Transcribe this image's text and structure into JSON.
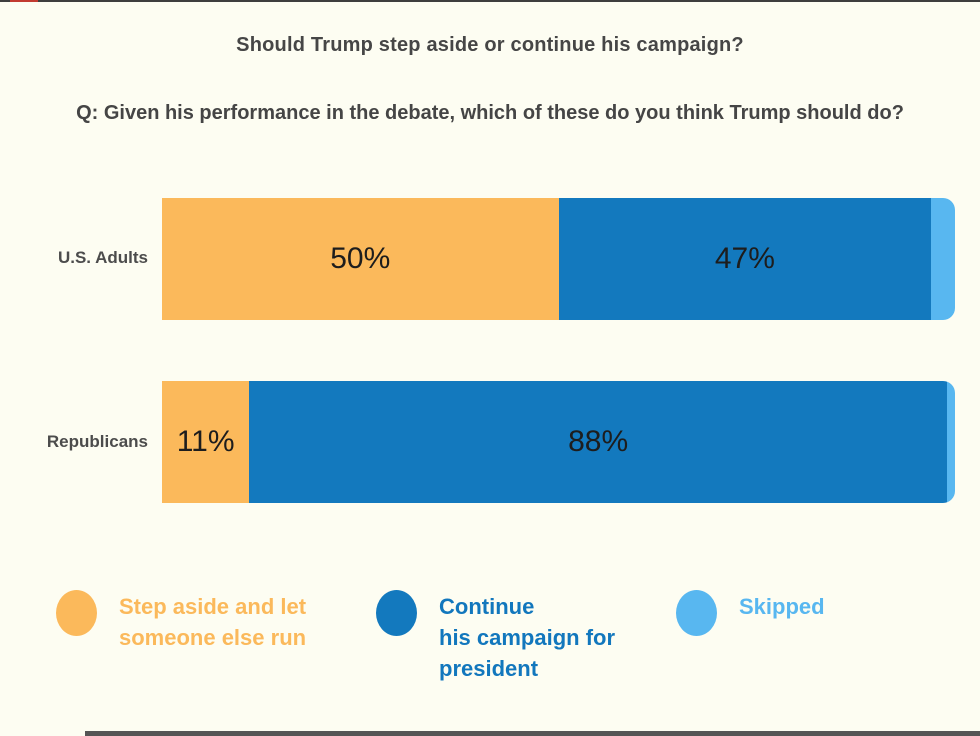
{
  "page": {
    "background": "#FDFDF2"
  },
  "header": {
    "title": "Should Trump step aside or continue his campaign?",
    "question": "Q: Given his performance in the debate, which of these do you think Trump should do?"
  },
  "chart_data": {
    "type": "bar",
    "stacked": true,
    "orientation": "horizontal",
    "title": "Should Trump step aside or continue his campaign?",
    "subtitle": "Q: Given his performance in the debate, which of these do you think Trump should do?",
    "categories": [
      "U.S. Adults",
      "Republicans"
    ],
    "series": [
      {
        "name": "Step aside and let someone else run",
        "color": "#FBB95B",
        "values": [
          50,
          11
        ],
        "labels": [
          "50%",
          "11%"
        ]
      },
      {
        "name": "Continue his campaign for president",
        "color": "#1379BE",
        "values": [
          47,
          88
        ],
        "labels": [
          "47%",
          "88%"
        ]
      },
      {
        "name": "Skipped",
        "color": "#58B7F0",
        "values": [
          3,
          1
        ],
        "labels": [
          "",
          ""
        ]
      }
    ],
    "xlim": [
      0,
      100
    ],
    "grid": false,
    "legend_position": "bottom"
  },
  "legend": {
    "items": [
      {
        "icon": "circle-swatch",
        "color": "#FBB95B",
        "text_color": "#FBB95B",
        "lines": [
          "Step aside and let",
          "someone else run"
        ]
      },
      {
        "icon": "circle-swatch",
        "color": "#1379BE",
        "text_color": "#1277BD",
        "lines": [
          "Continue",
          "his campaign for",
          "president"
        ]
      },
      {
        "icon": "circle-swatch",
        "color": "#58B7F0",
        "text_color": "#58B7F0",
        "lines": [
          "Skipped"
        ]
      }
    ]
  },
  "decorations": {
    "top_line_color": "#3E3E3E",
    "top_accent_color": "#C23B30",
    "bottom_bar_color": "#555555"
  }
}
